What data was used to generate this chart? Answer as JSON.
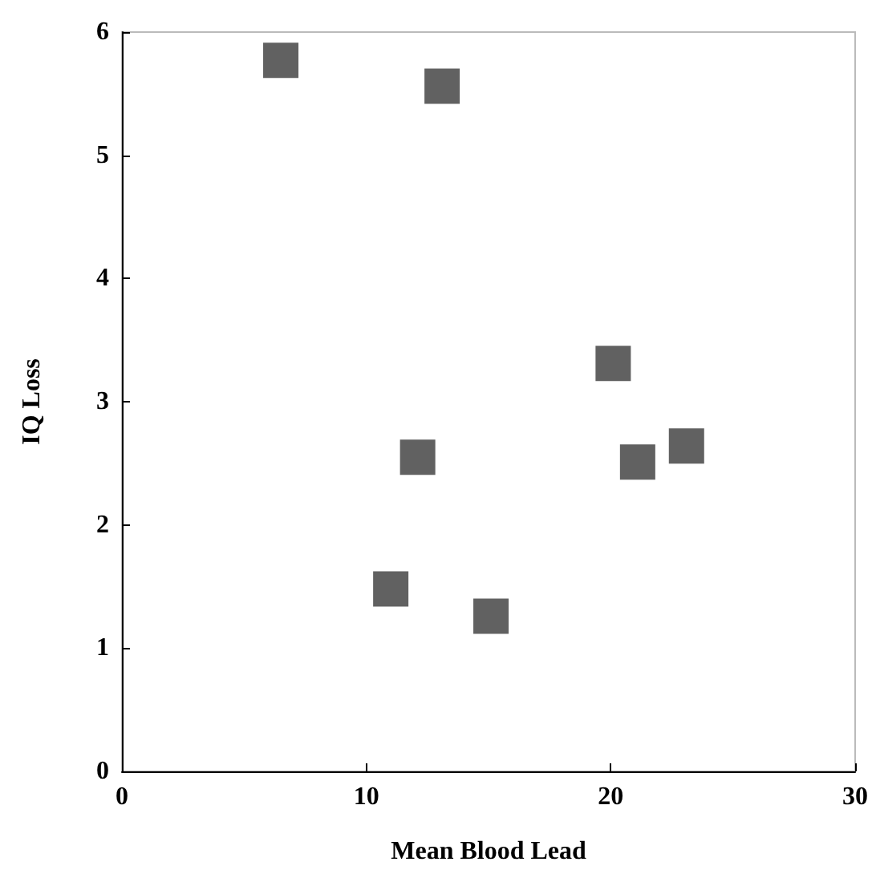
{
  "chart_data": {
    "type": "scatter",
    "xlabel": "Mean Blood Lead",
    "ylabel": "IQ Loss",
    "x": [
      6.5,
      13.1,
      20.1,
      12.1,
      21.1,
      23.1,
      11.0,
      15.1
    ],
    "values": [
      5.77,
      5.56,
      3.31,
      2.55,
      2.51,
      2.64,
      1.48,
      1.26
    ],
    "color": "#3a3a3a",
    "marker": "square",
    "xlim": [
      0,
      30
    ],
    "xticks": [
      0,
      10,
      20,
      30
    ],
    "ylim": [
      0,
      6
    ],
    "yticks": [
      0,
      1,
      2,
      3,
      4,
      5,
      6
    ],
    "grid": false
  }
}
